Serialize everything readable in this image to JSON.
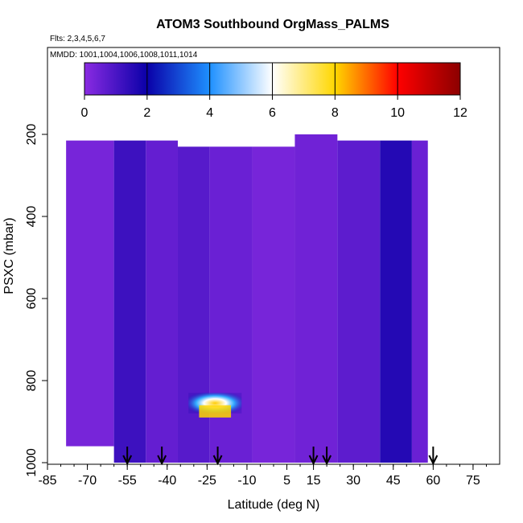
{
  "chart_data": {
    "type": "heatmap",
    "title": "ATOM3 Southbound OrgMass_PALMS",
    "subtitle_flights": "Flts: 2,3,4,5,6,7",
    "subtitle_dates": "MMDD: 1001,1004,1006,1008,1011,1014",
    "xlabel": "Latitude (deg N)",
    "ylabel": "PSXC (mbar)",
    "xlim": [
      -85,
      85
    ],
    "ylim": [
      1000,
      0
    ],
    "x_ticks": [
      -85,
      -70,
      -55,
      -40,
      -25,
      -10,
      5,
      15,
      30,
      45,
      60,
      75
    ],
    "y_ticks": [
      200,
      400,
      600,
      800,
      1000
    ],
    "colorbar": {
      "range": [
        0,
        12
      ],
      "ticks": [
        0,
        2,
        4,
        6,
        8,
        10,
        12
      ],
      "colors": [
        "#8a2be2",
        "#0a00a8",
        "#1e90ff",
        "#ffffff",
        "#ffd700",
        "#ff0000",
        "#8b0000"
      ]
    },
    "columns": [
      {
        "x": [
          -78,
          -60
        ],
        "p": [
          215,
          960
        ],
        "value": 0.3
      },
      {
        "x": [
          -60,
          -48
        ],
        "p": [
          215,
          1000
        ],
        "value": 1.2
      },
      {
        "x": [
          -48,
          -36
        ],
        "p": [
          215,
          1000
        ],
        "value": 0.6
      },
      {
        "x": [
          -36,
          -24
        ],
        "p": [
          230,
          1000
        ],
        "value": 0.8
      },
      {
        "x": [
          -24,
          -8
        ],
        "p": [
          230,
          1000
        ],
        "value": 0.5
      },
      {
        "x": [
          -8,
          8
        ],
        "p": [
          230,
          1000
        ],
        "value": 0.3
      },
      {
        "x": [
          8,
          24
        ],
        "p": [
          200,
          1000
        ],
        "value": 0.4
      },
      {
        "x": [
          24,
          40
        ],
        "p": [
          215,
          1000
        ],
        "value": 0.7
      },
      {
        "x": [
          40,
          52
        ],
        "p": [
          215,
          1000
        ],
        "value": 1.6
      },
      {
        "x": [
          52,
          58
        ],
        "p": [
          215,
          1000
        ],
        "value": 0.5
      }
    ],
    "plumes": [
      {
        "x": [
          -32,
          -12
        ],
        "p": [
          830,
          880
        ],
        "value": 4.5
      },
      {
        "x": [
          -28,
          -16
        ],
        "p": [
          860,
          890
        ],
        "value": 8.0
      }
    ],
    "profile_arrows_lat": [
      -55,
      -42,
      -21,
      15,
      20,
      60
    ]
  }
}
